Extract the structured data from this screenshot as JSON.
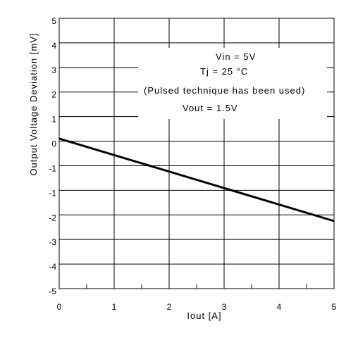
{
  "chart_data": {
    "type": "line",
    "xlabel": "Iout [A]",
    "ylabel": "Output Voltage Deviation [mV]",
    "xlim": [
      0,
      5
    ],
    "ylim": [
      -5,
      5
    ],
    "x_ticks": [
      "0",
      "1",
      "2",
      "3",
      "4",
      "5"
    ],
    "y_ticks": [
      "5",
      "4",
      "3",
      "2",
      "1",
      "0",
      "-1",
      "-1",
      "-2",
      "-3",
      "-4",
      "-5"
    ],
    "grid": true,
    "annotations": [
      "Vin = 5V",
      "Tj = 25 °C",
      "(Pulsed technique has been used)",
      "Vout = 1.5V"
    ],
    "series": [
      {
        "x": [
          0,
          5
        ],
        "y": [
          0.55,
          -2.5
        ]
      }
    ],
    "line_color": "#000000"
  }
}
